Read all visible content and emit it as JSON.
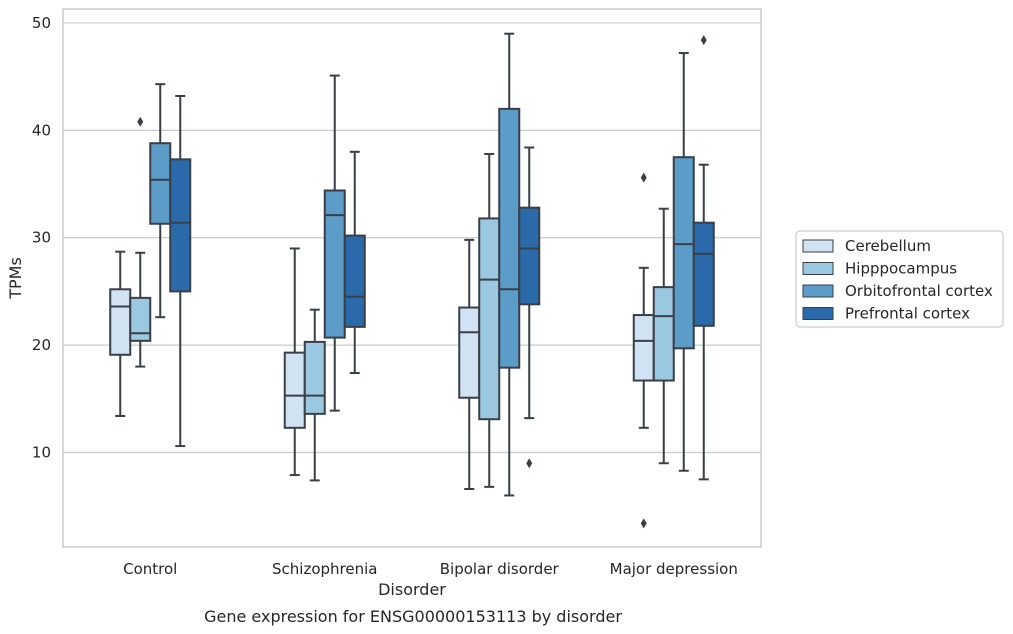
{
  "chart_data": {
    "type": "box",
    "xlabel": "Disorder",
    "ylabel": "TPMs",
    "caption": "Gene expression for ENSG00000153113 by disorder",
    "categories": [
      "Control",
      "Schizophrenia",
      "Bipolar disorder",
      "Major depression"
    ],
    "yticks": [
      10,
      20,
      30,
      40,
      50
    ],
    "ylim": [
      1.2,
      51.3
    ],
    "grid": "horizontal",
    "legend_position": "right",
    "series": [
      {
        "name": "Cerebellum",
        "color": "#d1e2f2",
        "boxes": [
          {
            "whislo": 13.4,
            "q1": 19.1,
            "med": 23.6,
            "q3": 25.2,
            "whishi": 28.7,
            "fliers": []
          },
          {
            "whislo": 7.9,
            "q1": 12.3,
            "med": 15.3,
            "q3": 19.3,
            "whishi": 29.0,
            "fliers": []
          },
          {
            "whislo": 6.6,
            "q1": 15.1,
            "med": 21.2,
            "q3": 23.5,
            "whishi": 29.8,
            "fliers": []
          },
          {
            "whislo": 12.3,
            "q1": 16.7,
            "med": 20.4,
            "q3": 22.8,
            "whishi": 27.2,
            "fliers": [
              35.6,
              3.4
            ]
          }
        ]
      },
      {
        "name": "Hipppocampus",
        "color": "#9ac8e0",
        "boxes": [
          {
            "whislo": 18.0,
            "q1": 20.4,
            "med": 21.1,
            "q3": 24.4,
            "whishi": 28.6,
            "fliers": [
              40.8
            ]
          },
          {
            "whislo": 7.4,
            "q1": 13.6,
            "med": 15.3,
            "q3": 20.3,
            "whishi": 23.3,
            "fliers": []
          },
          {
            "whislo": 6.8,
            "q1": 13.1,
            "med": 26.1,
            "q3": 31.8,
            "whishi": 37.8,
            "fliers": []
          },
          {
            "whislo": 9.0,
            "q1": 16.7,
            "med": 22.7,
            "q3": 25.4,
            "whishi": 32.7,
            "fliers": []
          }
        ]
      },
      {
        "name": "Orbitofrontal cortex",
        "color": "#5b9cc9",
        "boxes": [
          {
            "whislo": 22.6,
            "q1": 31.3,
            "med": 35.4,
            "q3": 38.8,
            "whishi": 44.3,
            "fliers": []
          },
          {
            "whislo": 13.9,
            "q1": 20.7,
            "med": 32.1,
            "q3": 34.4,
            "whishi": 45.1,
            "fliers": []
          },
          {
            "whislo": 6.0,
            "q1": 17.9,
            "med": 25.2,
            "q3": 42.0,
            "whishi": 49.0,
            "fliers": []
          },
          {
            "whislo": 8.3,
            "q1": 19.7,
            "med": 29.4,
            "q3": 37.5,
            "whishi": 47.2,
            "fliers": []
          }
        ]
      },
      {
        "name": "Prefrontal cortex",
        "color": "#2a6aaa",
        "boxes": [
          {
            "whislo": 10.6,
            "q1": 25.0,
            "med": 31.4,
            "q3": 37.3,
            "whishi": 43.2,
            "fliers": []
          },
          {
            "whislo": 17.4,
            "q1": 21.7,
            "med": 24.5,
            "q3": 30.2,
            "whishi": 38.0,
            "fliers": []
          },
          {
            "whislo": 13.2,
            "q1": 23.8,
            "med": 29.0,
            "q3": 32.8,
            "whishi": 38.4,
            "fliers": [
              9.0
            ]
          },
          {
            "whislo": 7.5,
            "q1": 21.8,
            "med": 28.5,
            "q3": 31.4,
            "whishi": 36.8,
            "fliers": [
              48.4
            ]
          }
        ]
      }
    ]
  }
}
